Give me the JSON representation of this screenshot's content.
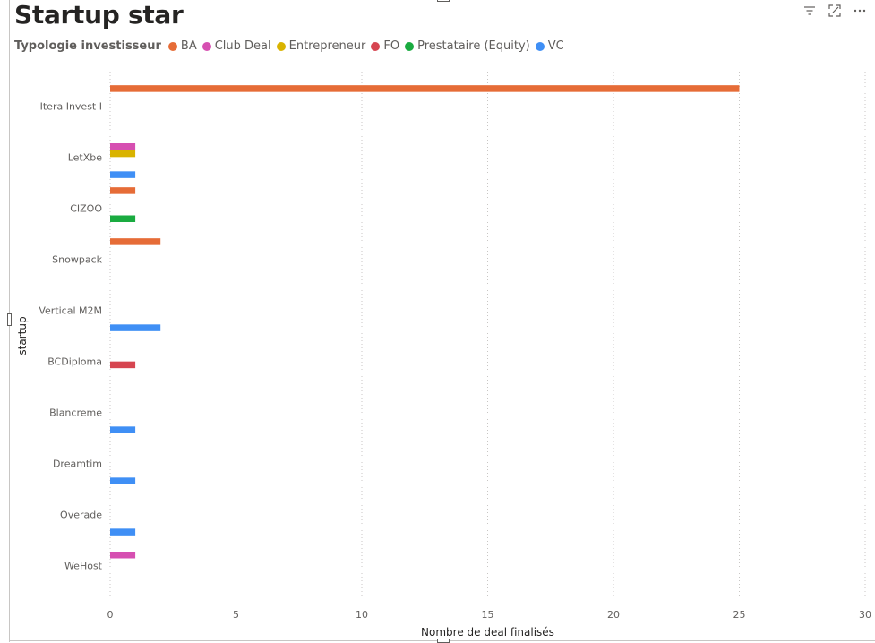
{
  "title": "Startup star",
  "toolbar": {
    "filter_icon": "filter-icon",
    "focus_icon": "focus-mode-icon",
    "more_icon": "more-options-icon"
  },
  "legend": {
    "title": "Typologie investisseur",
    "items": [
      {
        "label": "BA",
        "color": "#E66C37"
      },
      {
        "label": "Club Deal",
        "color": "#D64FB1"
      },
      {
        "label": "Entrepreneur",
        "color": "#D9B300"
      },
      {
        "label": "FO",
        "color": "#D64550"
      },
      {
        "label": "Prestataire (Equity)",
        "color": "#1AAB40"
      },
      {
        "label": "VC",
        "color": "#3F8FF5"
      }
    ]
  },
  "chart_data": {
    "type": "bar",
    "orientation": "horizontal",
    "xlabel": "Nombre de deal finalisés",
    "ylabel": "startup",
    "xlim": [
      0,
      30
    ],
    "xticks": [
      "0",
      "5",
      "10",
      "15",
      "20",
      "25",
      "30"
    ],
    "grid": true,
    "legend_position": "top-left",
    "categories": [
      "Itera Invest I",
      "LetXbe",
      "CIZOO",
      "Snowpack",
      "Vertical M2M",
      "BCDiploma",
      "Blancreme",
      "Dreamtim",
      "Overade",
      "WeHost"
    ],
    "series": [
      {
        "name": "BA",
        "color": "#E66C37",
        "values": [
          25,
          null,
          1,
          2,
          null,
          null,
          null,
          null,
          null,
          null
        ]
      },
      {
        "name": "Club Deal",
        "color": "#D64FB1",
        "values": [
          null,
          1,
          null,
          null,
          null,
          null,
          null,
          null,
          null,
          1
        ]
      },
      {
        "name": "Entrepreneur",
        "color": "#D9B300",
        "values": [
          null,
          1,
          null,
          null,
          null,
          null,
          null,
          null,
          null,
          null
        ]
      },
      {
        "name": "FO",
        "color": "#D64550",
        "values": [
          null,
          null,
          null,
          null,
          null,
          1,
          null,
          null,
          null,
          null
        ]
      },
      {
        "name": "Prestataire (Equity)",
        "color": "#1AAB40",
        "values": [
          null,
          null,
          1,
          null,
          null,
          null,
          null,
          null,
          null,
          null
        ]
      },
      {
        "name": "VC",
        "color": "#3F8FF5",
        "values": [
          null,
          1,
          null,
          null,
          2,
          null,
          1,
          1,
          1,
          null
        ]
      }
    ]
  }
}
